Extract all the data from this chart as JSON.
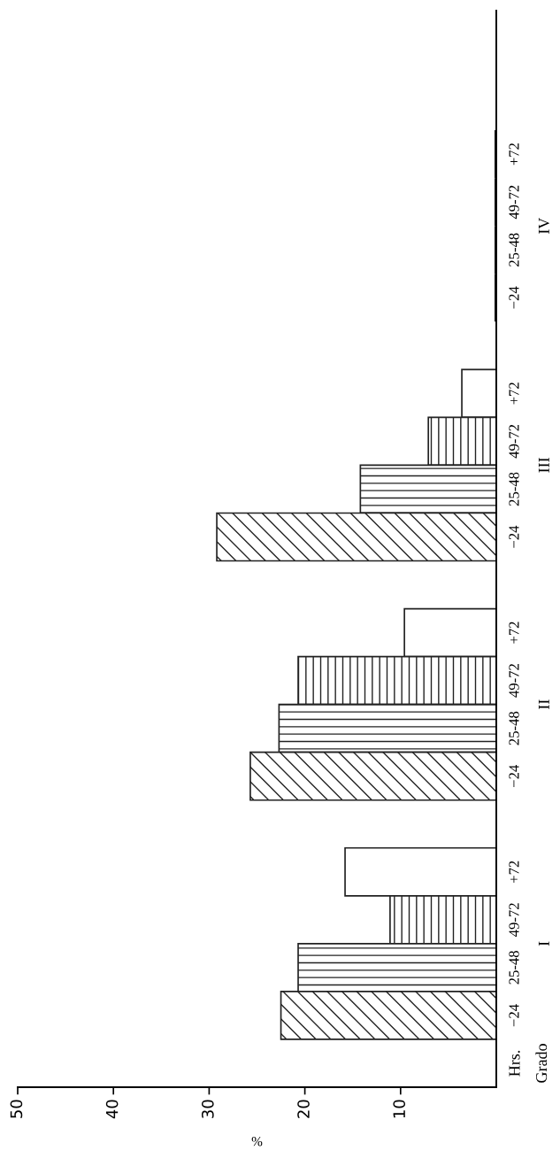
{
  "chart_data": {
    "type": "bar",
    "orientation": "horizontal",
    "xlabel": "%",
    "categories": [
      "IV",
      "III",
      "II",
      "I"
    ],
    "series": [
      {
        "name": "+72",
        "colors": [
          "#222222",
          "#ffffff",
          "#ffffff",
          "#ffffff"
        ],
        "values": [
          0,
          3.6,
          9.6,
          15.8
        ]
      },
      {
        "name": "49-72",
        "colors": [
          "#222222",
          "#ffffff",
          "#ffffff",
          "#ffffff"
        ],
        "values": [
          0,
          7.1,
          20.7,
          11.1
        ]
      },
      {
        "name": "25-48",
        "colors": [
          "#222222",
          "#ffffff",
          "#ffffff",
          "#ffffff"
        ],
        "values": [
          0,
          14.2,
          22.7,
          20.7
        ]
      },
      {
        "name": "−24",
        "colors": [
          "#222222",
          "#ffffff",
          "#ffffff",
          "#ffffff"
        ],
        "values": [
          0,
          29.2,
          25.7,
          22.5
        ]
      }
    ],
    "xlim": [
      50,
      0
    ],
    "xticks": [
      50,
      40,
      30,
      20,
      10
    ],
    "grid": false,
    "legend": false,
    "annotations": [
      "Hrs.",
      "Grado"
    ]
  }
}
